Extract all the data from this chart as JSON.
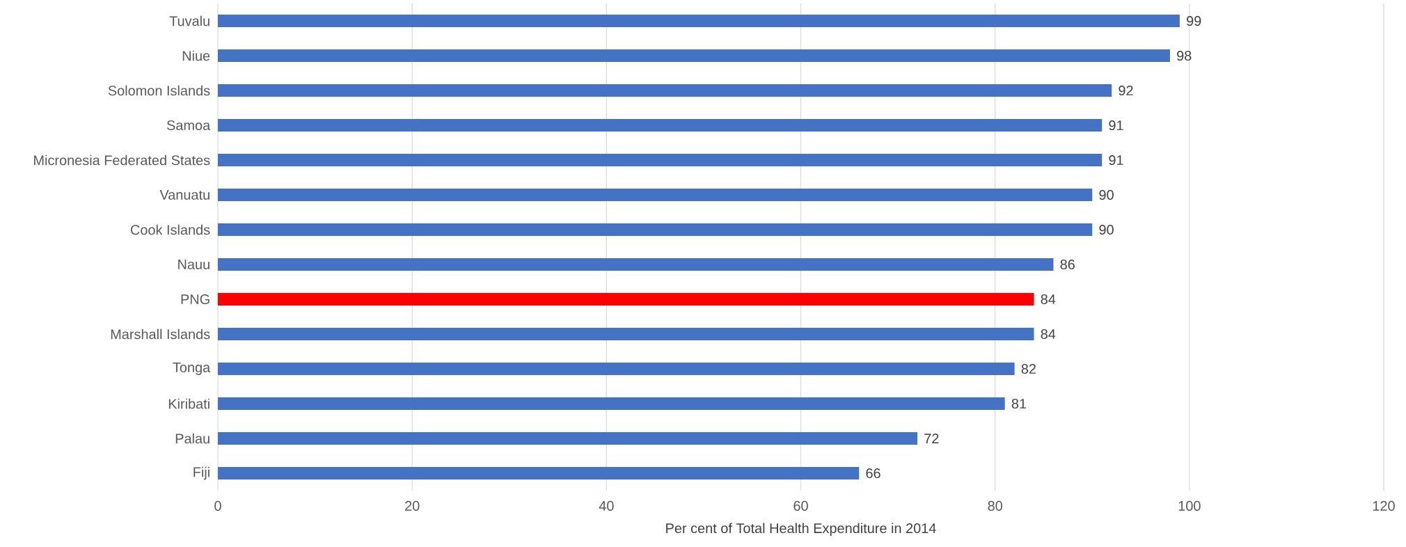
{
  "chart_data": {
    "type": "bar",
    "orientation": "horizontal",
    "xlabel": "Per cent of Total Health Expenditure in 2014",
    "categories": [
      "Tuvalu",
      "Niue",
      "Solomon Islands",
      "Samoa",
      "Micronesia Federated States",
      "Vanuatu",
      "Cook Islands",
      "Nauu",
      "PNG",
      "Marshall Islands",
      "Tonga",
      "Kiribati",
      "Palau",
      "Fiji"
    ],
    "values": [
      99,
      98,
      92,
      91,
      91,
      90,
      90,
      86,
      84,
      84,
      82,
      81,
      72,
      66
    ],
    "colors": [
      "#4472c4",
      "#4472c4",
      "#4472c4",
      "#4472c4",
      "#4472c4",
      "#4472c4",
      "#4472c4",
      "#4472c4",
      "#ff0000",
      "#4472c4",
      "#4472c4",
      "#4472c4",
      "#4472c4",
      "#4472c4"
    ],
    "xlim": [
      0,
      120
    ],
    "xticks": [
      0,
      20,
      40,
      60,
      80,
      100,
      120
    ],
    "grid": "x",
    "data_labels": true
  }
}
